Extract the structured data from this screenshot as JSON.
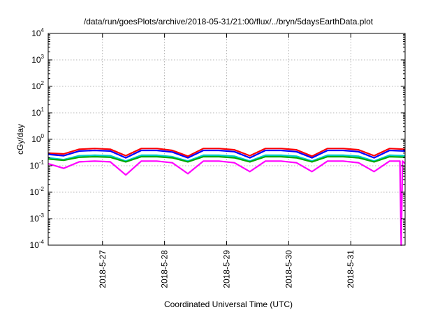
{
  "chart_data": {
    "type": "line",
    "title": "/data/run/goesPlots/archive/2018-05-31/21:00/flux/../bryn/5daysEarthData.plot",
    "xlabel": "Coordinated Universal Time (UTC)",
    "ylabel": "cGy/day",
    "y_scale": "log",
    "ylim": [
      0.0001,
      10000
    ],
    "y_ticks": [
      {
        "base": "10",
        "exp": "-4",
        "value": 0.0001
      },
      {
        "base": "10",
        "exp": "-3",
        "value": 0.001
      },
      {
        "base": "10",
        "exp": "-2",
        "value": 0.01
      },
      {
        "base": "10",
        "exp": "-1",
        "value": 0.1
      },
      {
        "base": "10",
        "exp": "0",
        "value": 1
      },
      {
        "base": "10",
        "exp": "1",
        "value": 10
      },
      {
        "base": "10",
        "exp": "2",
        "value": 100
      },
      {
        "base": "10",
        "exp": "3",
        "value": 1000
      },
      {
        "base": "10",
        "exp": "4",
        "value": 10000
      }
    ],
    "xlim": [
      "2018-05-26T03:00",
      "2018-05-31T21:00"
    ],
    "x_ticks": [
      {
        "label": "2018-5-27",
        "value": "2018-05-27T00:00"
      },
      {
        "label": "2018-5-28",
        "value": "2018-05-28T00:00"
      },
      {
        "label": "2018-5-29",
        "value": "2018-05-29T00:00"
      },
      {
        "label": "2018-5-30",
        "value": "2018-05-30T00:00"
      },
      {
        "label": "2018-5-31",
        "value": "2018-05-31T00:00"
      }
    ],
    "grid": true,
    "legend": "none",
    "series": [
      {
        "color": "#ff0000",
        "x": [
          "2018-05-26T03:00",
          "2018-05-26T09:00",
          "2018-05-26T15:00",
          "2018-05-26T21:00",
          "2018-05-27T03:00",
          "2018-05-27T09:00",
          "2018-05-27T15:00",
          "2018-05-27T21:00",
          "2018-05-28T03:00",
          "2018-05-28T09:00",
          "2018-05-28T15:00",
          "2018-05-28T21:00",
          "2018-05-29T03:00",
          "2018-05-29T09:00",
          "2018-05-29T15:00",
          "2018-05-29T21:00",
          "2018-05-30T03:00",
          "2018-05-30T09:00",
          "2018-05-30T15:00",
          "2018-05-30T21:00",
          "2018-05-31T03:00",
          "2018-05-31T09:00",
          "2018-05-31T15:00",
          "2018-05-31T21:00"
        ],
        "y": [
          0.3,
          0.28,
          0.42,
          0.45,
          0.42,
          0.24,
          0.45,
          0.45,
          0.38,
          0.23,
          0.45,
          0.45,
          0.4,
          0.24,
          0.45,
          0.45,
          0.4,
          0.23,
          0.45,
          0.45,
          0.4,
          0.24,
          0.45,
          0.42
        ]
      },
      {
        "color": "#0000ff",
        "x": [
          "2018-05-26T03:00",
          "2018-05-26T09:00",
          "2018-05-26T15:00",
          "2018-05-26T21:00",
          "2018-05-27T03:00",
          "2018-05-27T09:00",
          "2018-05-27T15:00",
          "2018-05-27T21:00",
          "2018-05-28T03:00",
          "2018-05-28T09:00",
          "2018-05-28T15:00",
          "2018-05-28T21:00",
          "2018-05-29T03:00",
          "2018-05-29T09:00",
          "2018-05-29T15:00",
          "2018-05-29T21:00",
          "2018-05-30T03:00",
          "2018-05-30T09:00",
          "2018-05-30T15:00",
          "2018-05-30T21:00",
          "2018-05-31T03:00",
          "2018-05-31T09:00",
          "2018-05-31T15:00",
          "2018-05-31T21:00"
        ],
        "y": [
          0.27,
          0.24,
          0.36,
          0.38,
          0.36,
          0.2,
          0.38,
          0.38,
          0.33,
          0.2,
          0.38,
          0.38,
          0.34,
          0.2,
          0.38,
          0.38,
          0.34,
          0.2,
          0.38,
          0.38,
          0.34,
          0.2,
          0.38,
          0.36
        ]
      },
      {
        "color": "#00cccc",
        "x": [
          "2018-05-26T03:00",
          "2018-05-26T09:00",
          "2018-05-26T15:00",
          "2018-05-26T21:00",
          "2018-05-27T03:00",
          "2018-05-27T09:00",
          "2018-05-27T15:00",
          "2018-05-27T21:00",
          "2018-05-28T03:00",
          "2018-05-28T09:00",
          "2018-05-28T15:00",
          "2018-05-28T21:00",
          "2018-05-29T03:00",
          "2018-05-29T09:00",
          "2018-05-29T15:00",
          "2018-05-29T21:00",
          "2018-05-30T03:00",
          "2018-05-30T09:00",
          "2018-05-30T15:00",
          "2018-05-30T21:00",
          "2018-05-31T03:00",
          "2018-05-31T09:00",
          "2018-05-31T15:00",
          "2018-05-31T21:00"
        ],
        "y": [
          0.2,
          0.17,
          0.24,
          0.25,
          0.24,
          0.15,
          0.25,
          0.25,
          0.22,
          0.15,
          0.25,
          0.25,
          0.23,
          0.15,
          0.25,
          0.25,
          0.23,
          0.15,
          0.25,
          0.25,
          0.23,
          0.15,
          0.25,
          0.24
        ]
      },
      {
        "color": "#00aa00",
        "x": [
          "2018-05-26T03:00",
          "2018-05-26T09:00",
          "2018-05-26T15:00",
          "2018-05-26T21:00",
          "2018-05-27T03:00",
          "2018-05-27T09:00",
          "2018-05-27T15:00",
          "2018-05-27T21:00",
          "2018-05-28T03:00",
          "2018-05-28T09:00",
          "2018-05-28T15:00",
          "2018-05-28T21:00",
          "2018-05-29T03:00",
          "2018-05-29T09:00",
          "2018-05-29T15:00",
          "2018-05-29T21:00",
          "2018-05-30T03:00",
          "2018-05-30T09:00",
          "2018-05-30T15:00",
          "2018-05-30T21:00",
          "2018-05-31T03:00",
          "2018-05-31T09:00",
          "2018-05-31T15:00",
          "2018-05-31T21:00"
        ],
        "y": [
          0.18,
          0.16,
          0.21,
          0.22,
          0.21,
          0.14,
          0.22,
          0.22,
          0.2,
          0.14,
          0.22,
          0.22,
          0.2,
          0.14,
          0.22,
          0.22,
          0.2,
          0.14,
          0.22,
          0.22,
          0.2,
          0.14,
          0.22,
          0.21
        ]
      },
      {
        "color": "#ff00ff",
        "x": [
          "2018-05-26T03:00",
          "2018-05-26T09:00",
          "2018-05-26T15:00",
          "2018-05-26T21:00",
          "2018-05-27T03:00",
          "2018-05-27T09:00",
          "2018-05-27T15:00",
          "2018-05-27T21:00",
          "2018-05-28T03:00",
          "2018-05-28T09:00",
          "2018-05-28T15:00",
          "2018-05-28T21:00",
          "2018-05-29T03:00",
          "2018-05-29T09:00",
          "2018-05-29T15:00",
          "2018-05-29T21:00",
          "2018-05-30T03:00",
          "2018-05-30T09:00",
          "2018-05-30T15:00",
          "2018-05-30T21:00",
          "2018-05-31T03:00",
          "2018-05-31T09:00",
          "2018-05-31T15:00",
          "2018-05-31T19:00",
          "2018-05-31T19:30",
          "2018-05-31T20:00",
          "2018-05-31T21:00"
        ],
        "y": [
          0.12,
          0.08,
          0.14,
          0.15,
          0.14,
          0.045,
          0.15,
          0.15,
          0.13,
          0.05,
          0.15,
          0.15,
          0.13,
          0.06,
          0.15,
          0.15,
          0.13,
          0.06,
          0.15,
          0.15,
          0.13,
          0.06,
          0.15,
          0.15,
          0.0001,
          0.15,
          0.12
        ]
      }
    ]
  }
}
